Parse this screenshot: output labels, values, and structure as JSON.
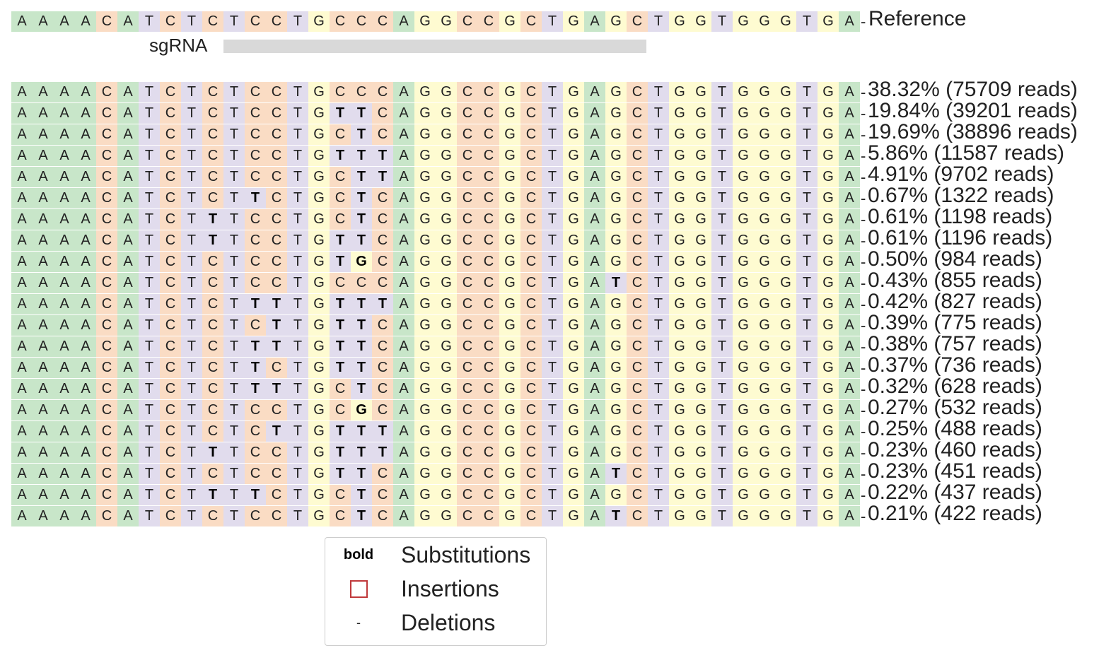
{
  "reference": {
    "sequence": "AAAACATCTCTCCTGCCCAGGCCGCTGAGCTGGTGGGTGA",
    "label": "Reference",
    "suffix": "-"
  },
  "sgrna": {
    "label": "sgRNA",
    "start_index": 10,
    "end_index": 29
  },
  "colors": {
    "A": "#c8e6c9",
    "C": "#fadcc4",
    "G": "#fefbd1",
    "T": "#e1dced",
    "substitution": "#000000",
    "insertion_border": "#c0393b"
  },
  "alleles": [
    {
      "sequence": "AAAACATCTCTCCTGCCCAGGCCGCTGAGCTGGTGGGTGA",
      "percent": "38.32%",
      "reads": "(75709 reads)"
    },
    {
      "sequence": "AAAACATCTCTCCTGTTCAGGCCGCTGAGCTGGTGGGTGA",
      "percent": "19.84%",
      "reads": "(39201 reads)"
    },
    {
      "sequence": "AAAACATCTCTCCTGCTCAGGCCGCTGAGCTGGTGGGTGA",
      "percent": "19.69%",
      "reads": "(38896 reads)"
    },
    {
      "sequence": "AAAACATCTCTCCTGTTTAGGCCGCTGAGCTGGTGGGTGA",
      "percent": "5.86%",
      "reads": "(11587 reads)"
    },
    {
      "sequence": "AAAACATCTCTCCTGCTTAGGCCGCTGAGCTGGTGGGTGA",
      "percent": "4.91%",
      "reads": "(9702 reads)"
    },
    {
      "sequence": "AAAACATCTCTTCTGCTCAGGCCGCTGAGCTGGTGGGTGA",
      "percent": "0.67%",
      "reads": "(1322 reads)"
    },
    {
      "sequence": "AAAACATCTTTCCTGCTCAGGCCGCTGAGCTGGTGGGTGA",
      "percent": "0.61%",
      "reads": "(1198 reads)"
    },
    {
      "sequence": "AAAACATCTTTCCTGTTCAGGCCGCTGAGCTGGTGGGTGA",
      "percent": "0.61%",
      "reads": "(1196 reads)"
    },
    {
      "sequence": "AAAACATCTCTCCTGTGCAGGCCGCTGAGCTGGTGGGTGA",
      "percent": "0.50%",
      "reads": "(984 reads)"
    },
    {
      "sequence": "AAAACATCTCTCCTGCCCAGGCCGCTGATCTGGTGGGTGA",
      "percent": "0.43%",
      "reads": "(855 reads)"
    },
    {
      "sequence": "AAAACATCTCTTTTGTTTAGGCCGCTGAGCTGGTGGGTGA",
      "percent": "0.42%",
      "reads": "(827 reads)"
    },
    {
      "sequence": "AAAACATCTCTCTTGTTCAGGCCGCTGAGCTGGTGGGTGA",
      "percent": "0.39%",
      "reads": "(775 reads)"
    },
    {
      "sequence": "AAAACATCTCTTTTGTTCAGGCCGCTGAGCTGGTGGGTGA",
      "percent": "0.38%",
      "reads": "(757 reads)"
    },
    {
      "sequence": "AAAACATCTCTTCTGTTCAGGCCGCTGAGCTGGTGGGTGA",
      "percent": "0.37%",
      "reads": "(736 reads)"
    },
    {
      "sequence": "AAAACATCTCTTTTGCTCAGGCCGCTGAGCTGGTGGGTGA",
      "percent": "0.32%",
      "reads": "(628 reads)"
    },
    {
      "sequence": "AAAACATCTCTCCTGCGCAGGCCGCTGAGCTGGTGGGTGA",
      "percent": "0.27%",
      "reads": "(532 reads)"
    },
    {
      "sequence": "AAAACATCTCTCTTGTTTAGGCCGCTGAGCTGGTGGGTGA",
      "percent": "0.25%",
      "reads": "(488 reads)"
    },
    {
      "sequence": "AAAACATCTTTCCTGTTTAGGCCGCTGAGCTGGTGGGTGA",
      "percent": "0.23%",
      "reads": "(460 reads)"
    },
    {
      "sequence": "AAAACATCTCTCCTGTTCAGGCCGCTGATCTGGTGGGTGA",
      "percent": "0.23%",
      "reads": "(451 reads)"
    },
    {
      "sequence": "AAAACATCTTTTCTGCTCAGGCCGCTGAGCTGGTGGGTGA",
      "percent": "0.22%",
      "reads": "(437 reads)"
    },
    {
      "sequence": "AAAACATCTCTCCTGCTCAGGCCGCTGATCTGGTGGGTGA",
      "percent": "0.21%",
      "reads": "(422 reads)"
    }
  ],
  "legend": {
    "substitutions_key": "bold",
    "substitutions_label": "Substitutions",
    "insertions_label": "Insertions",
    "deletions_key": "-",
    "deletions_label": "Deletions"
  }
}
